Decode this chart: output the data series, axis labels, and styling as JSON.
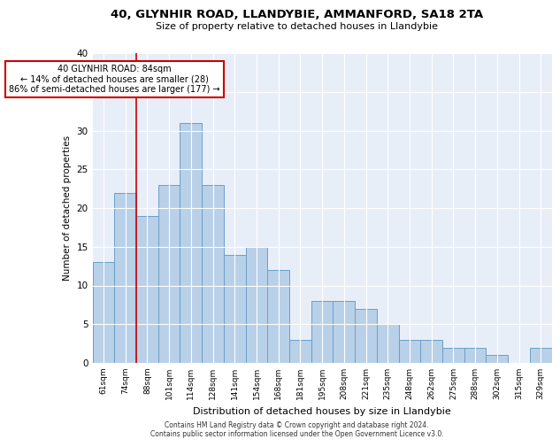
{
  "title1": "40, GLYNHIR ROAD, LLANDYBIE, AMMANFORD, SA18 2TA",
  "title2": "Size of property relative to detached houses in Llandybie",
  "xlabel": "Distribution of detached houses by size in Llandybie",
  "ylabel": "Number of detached properties",
  "categories": [
    "61sqm",
    "74sqm",
    "88sqm",
    "101sqm",
    "114sqm",
    "128sqm",
    "141sqm",
    "154sqm",
    "168sqm",
    "181sqm",
    "195sqm",
    "208sqm",
    "221sqm",
    "235sqm",
    "248sqm",
    "262sqm",
    "275sqm",
    "288sqm",
    "302sqm",
    "315sqm",
    "329sqm"
  ],
  "values": [
    13,
    22,
    19,
    23,
    31,
    23,
    14,
    15,
    12,
    3,
    8,
    8,
    7,
    5,
    3,
    3,
    2,
    2,
    1,
    0,
    2
  ],
  "bar_color": "#b8d0e8",
  "bar_edge_color": "#6aa0c8",
  "background_color": "#e8eef8",
  "grid_color": "#ffffff",
  "vline_color": "#cc0000",
  "vline_pos": 1.5,
  "annotation_text": "40 GLYNHIR ROAD: 84sqm\n← 14% of detached houses are smaller (28)\n86% of semi-detached houses are larger (177) →",
  "annotation_box_color": "#ffffff",
  "annotation_box_edge_color": "#cc0000",
  "ylim": [
    0,
    40
  ],
  "yticks": [
    0,
    5,
    10,
    15,
    20,
    25,
    30,
    35,
    40
  ],
  "footer1": "Contains HM Land Registry data © Crown copyright and database right 2024.",
  "footer2": "Contains public sector information licensed under the Open Government Licence v3.0."
}
